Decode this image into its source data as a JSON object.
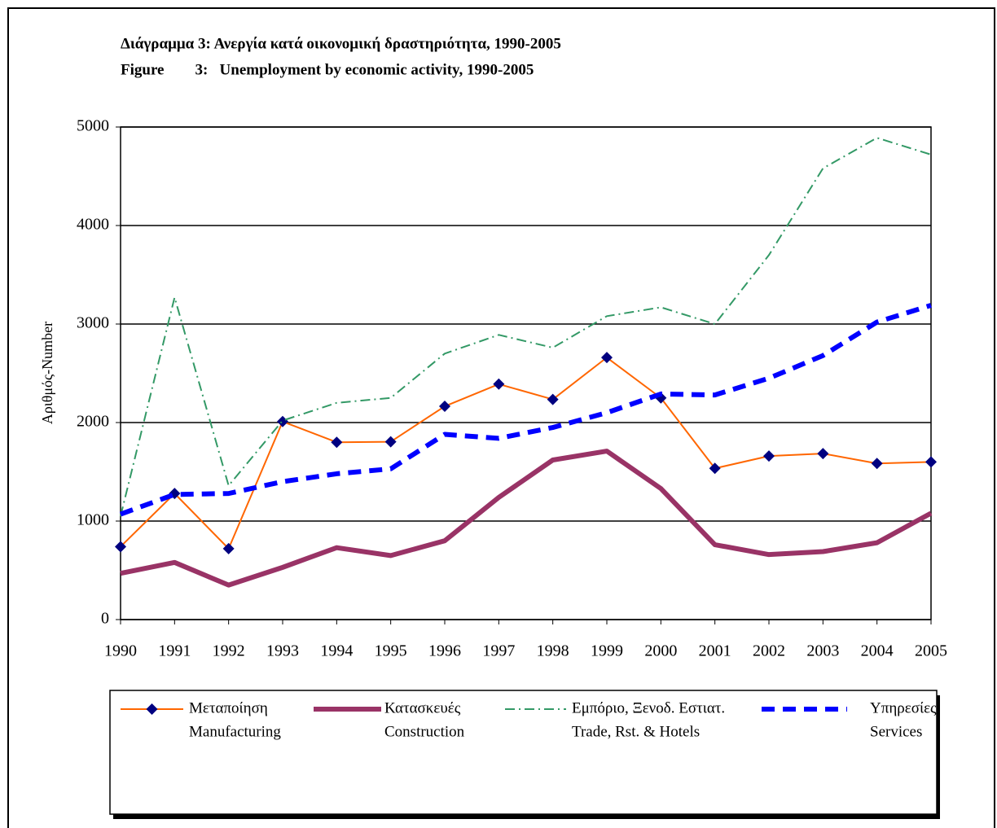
{
  "chart_data": {
    "type": "line",
    "title": [
      "Διάγραμμα  3:  Ανεργία κατά οικονομική δραστηριότητα, 1990-2005",
      "Figure        3:   Unemployment by economic activity, 1990-2005"
    ],
    "y_label": "Αριθμός-Number",
    "categories": [
      "1990",
      "1991",
      "1992",
      "1993",
      "1994",
      "1995",
      "1996",
      "1997",
      "1998",
      "1999",
      "2000",
      "2001",
      "2002",
      "2003",
      "2004",
      "2005"
    ],
    "series": [
      {
        "name": [
          "Μεταποίηση",
          "Manufacturing"
        ],
        "color": "#ff6600",
        "marker_color": "#000080",
        "values": [
          740,
          1280,
          720,
          2010,
          1800,
          1805,
          2165,
          2390,
          2235,
          2660,
          2250,
          1535,
          1660,
          1685,
          1585,
          1600
        ]
      },
      {
        "name": [
          "Κατασκευές",
          "Construction"
        ],
        "color": "#993366",
        "values": [
          470,
          580,
          350,
          530,
          730,
          650,
          800,
          1240,
          1620,
          1710,
          1330,
          760,
          660,
          690,
          780,
          1080
        ]
      },
      {
        "name": [
          "Εμπόριο, Ξενοδ. Εστιατ.",
          "Trade, Rst. & Hotels"
        ],
        "color": "#339966",
        "values": [
          1050,
          3270,
          1360,
          2020,
          2200,
          2250,
          2700,
          2890,
          2760,
          3080,
          3170,
          3000,
          3700,
          4580,
          4890,
          4720
        ]
      },
      {
        "name": [
          "Υπηρεσίες",
          "Services"
        ],
        "color": "#0000ff",
        "values": [
          1070,
          1270,
          1280,
          1400,
          1480,
          1530,
          1880,
          1840,
          1950,
          2100,
          2290,
          2280,
          2450,
          2680,
          3020,
          3190
        ]
      }
    ],
    "ylim": [
      0,
      5000
    ],
    "yticks": [
      0,
      1000,
      2000,
      3000,
      4000,
      5000
    ],
    "grid": true,
    "legend": "bottom"
  }
}
